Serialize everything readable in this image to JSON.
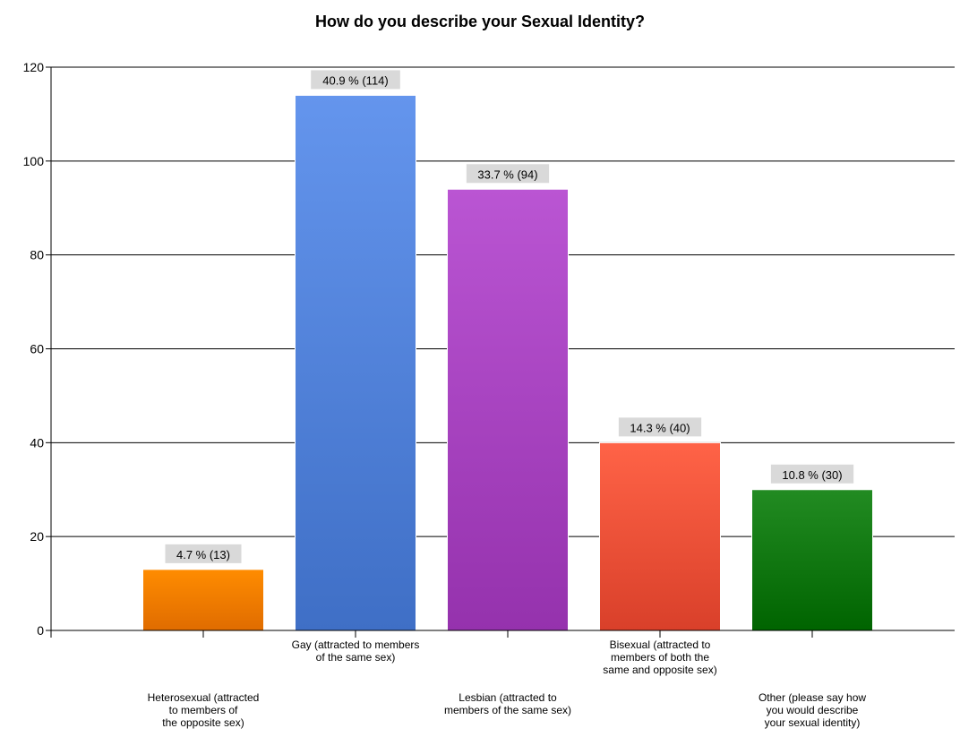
{
  "chart_data": {
    "type": "bar",
    "title": "How do you describe your Sexual Identity?",
    "xlabel": "",
    "ylabel": "",
    "ylim": [
      0,
      120
    ],
    "yticks": [
      0,
      20,
      40,
      60,
      80,
      100,
      120
    ],
    "grid": true,
    "legend": "none",
    "categories": [
      [
        "Heterosexual (attracted",
        "to members of",
        "the opposite sex)"
      ],
      [
        "Gay (attracted to members",
        "of the same sex)"
      ],
      [
        "Lesbian (attracted to",
        "members of the same sex)"
      ],
      [
        "Bisexual (attracted to",
        "members of both the",
        "same and opposite sex)"
      ],
      [
        "Other (please say how",
        "you would describe",
        "your sexual identity)"
      ]
    ],
    "values": [
      13,
      114,
      94,
      40,
      30
    ],
    "percentages": [
      4.7,
      40.9,
      33.7,
      14.3,
      10.8
    ],
    "data_labels": [
      "4.7 % (13)",
      "40.9 % (114)",
      "33.7 % (94)",
      "14.3 % (40)",
      "10.8 % (30)"
    ],
    "colors": [
      [
        "#ff8c00",
        "#e06c00"
      ],
      [
        "#6495ed",
        "#3f6fc6"
      ],
      [
        "#ba55d3",
        "#9532ad"
      ],
      [
        "#ff6347",
        "#d9402a"
      ],
      [
        "#228b22",
        "#006400"
      ]
    ]
  }
}
